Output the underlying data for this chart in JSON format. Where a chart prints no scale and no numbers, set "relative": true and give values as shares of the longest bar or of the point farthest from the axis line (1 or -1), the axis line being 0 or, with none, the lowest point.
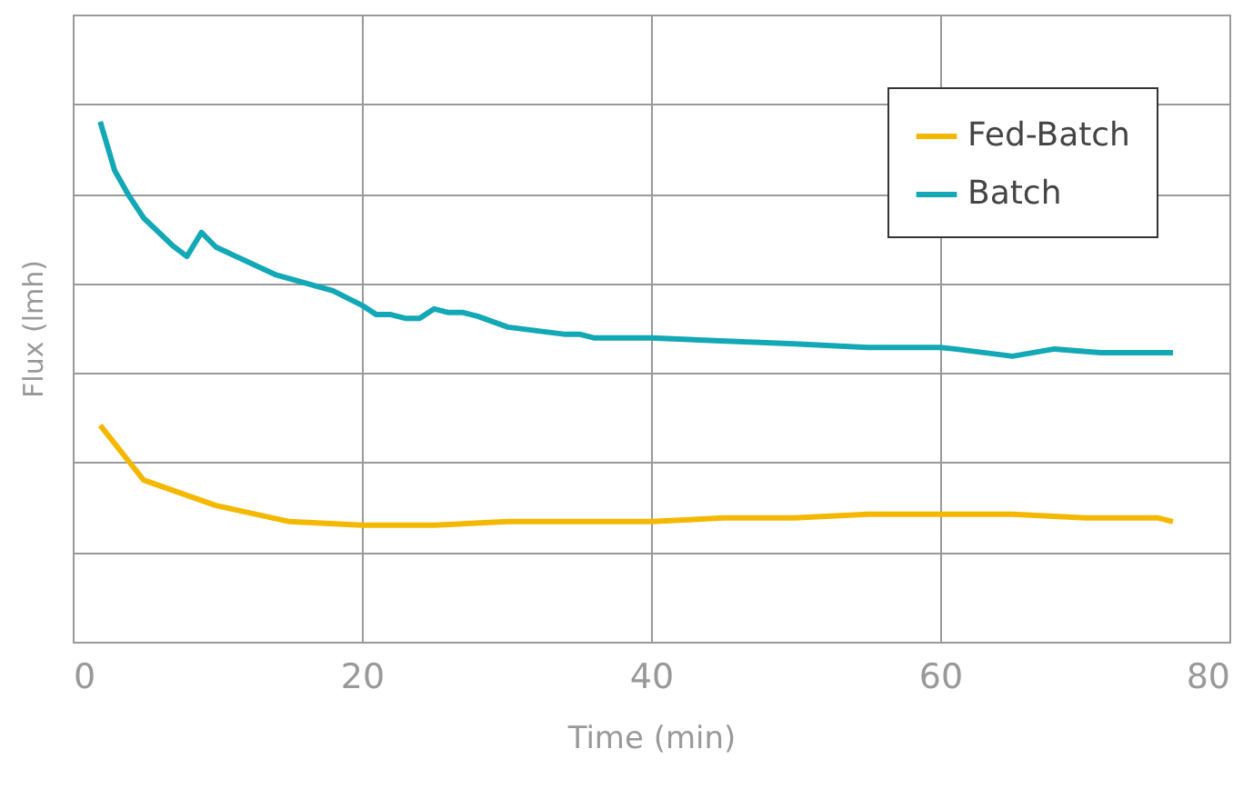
{
  "chart_data": {
    "type": "line",
    "relative": true,
    "xlabel": "Time (min)",
    "ylabel": "Flux (lmh)",
    "xlim": [
      0,
      80
    ],
    "xticks": [
      0,
      20,
      40,
      60,
      80
    ],
    "grid": true,
    "legend": "top right",
    "marker": "none",
    "line_style": "solid",
    "series": [
      {
        "name": "Fed-Batch",
        "color": "#f5b800",
        "x": [
          1.9,
          4.9,
          9.9,
          15.0,
          20,
          25,
          30.1,
          40,
          45,
          49.9,
          55,
          65,
          70.1,
          75.1,
          76.1
        ],
        "values": [
          0.416,
          0.311,
          0.262,
          0.231,
          0.224,
          0.224,
          0.231,
          0.231,
          0.238,
          0.238,
          0.245,
          0.245,
          0.238,
          0.238,
          0.231
        ]
      },
      {
        "name": "Batch",
        "color": "#13a8b5",
        "x": [
          1.9,
          2.9,
          3.9,
          4.9,
          6.9,
          7.9,
          8.9,
          9.9,
          14.0,
          18.0,
          20.0,
          21.0,
          22.0,
          23.0,
          24.0,
          25.0,
          26.0,
          27.0,
          28.0,
          30.1,
          32.1,
          34.1,
          35.1,
          36.1,
          40,
          49.9,
          55,
          60,
          61,
          65,
          67.9,
          71.1,
          76.1
        ],
        "values": [
          1.0,
          0.906,
          0.857,
          0.815,
          0.762,
          0.741,
          0.787,
          0.759,
          0.706,
          0.675,
          0.647,
          0.629,
          0.629,
          0.622,
          0.622,
          0.64,
          0.633,
          0.633,
          0.626,
          0.605,
          0.598,
          0.591,
          0.591,
          0.584,
          0.584,
          0.573,
          0.566,
          0.566,
          0.563,
          0.549,
          0.563,
          0.556,
          0.556
        ]
      }
    ]
  }
}
